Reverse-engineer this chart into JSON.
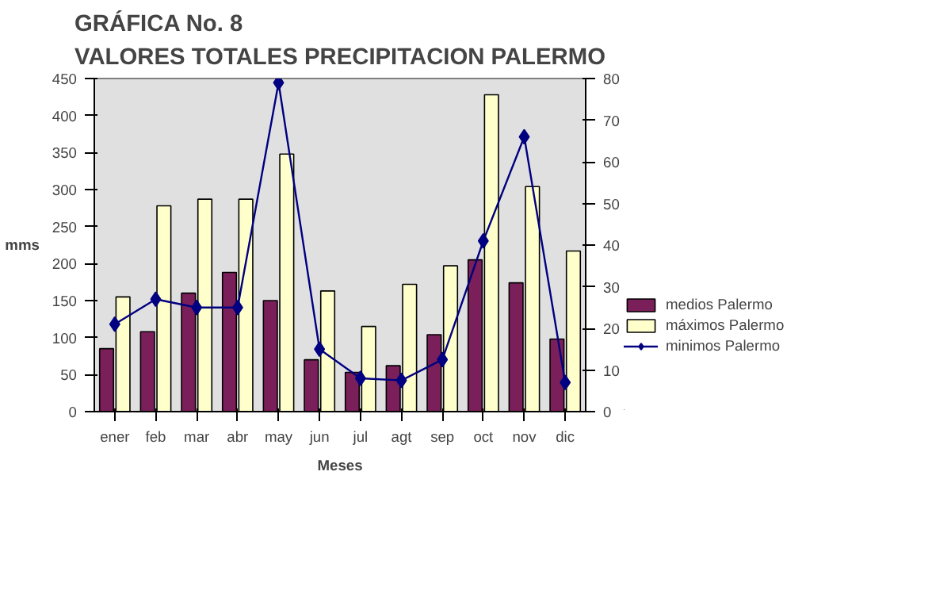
{
  "chart_data": {
    "type": "bar",
    "title": "GRÁFICA No. 8\nVALORES TOTALES PRECIPITACION PALERMO",
    "xlabel": "Meses",
    "ylabel": "mms",
    "categories": [
      "ener",
      "feb",
      "mar",
      "abr",
      "may",
      "jun",
      "jul",
      "agt",
      "sep",
      "oct",
      "nov",
      "dic"
    ],
    "series": [
      {
        "name": "medios Palermo",
        "color": "#7b1f5a",
        "values": [
          85,
          108,
          160,
          188,
          150,
          70,
          53,
          62,
          104,
          205,
          174,
          98
        ]
      },
      {
        "name": "máximos Palermo",
        "color": "#ffffcc",
        "values": [
          155,
          278,
          287,
          287,
          348,
          163,
          115,
          172,
          197,
          428,
          304,
          217
        ]
      },
      {
        "name": "minimos Palermo",
        "type": "line",
        "axis": "y2",
        "marker": "diamond",
        "color": "#000080",
        "values": [
          21,
          27,
          25,
          25,
          79,
          15,
          8,
          7.5,
          12.5,
          41,
          66,
          7
        ]
      }
    ],
    "ylim": [
      0,
      450
    ],
    "yticks": [
      0,
      50,
      100,
      150,
      200,
      250,
      300,
      350,
      400,
      450
    ],
    "y2lim": [
      0,
      80
    ],
    "y2ticks": [
      0,
      10,
      20,
      30,
      40,
      50,
      60,
      70,
      80
    ],
    "grid": false,
    "legend": "right"
  }
}
